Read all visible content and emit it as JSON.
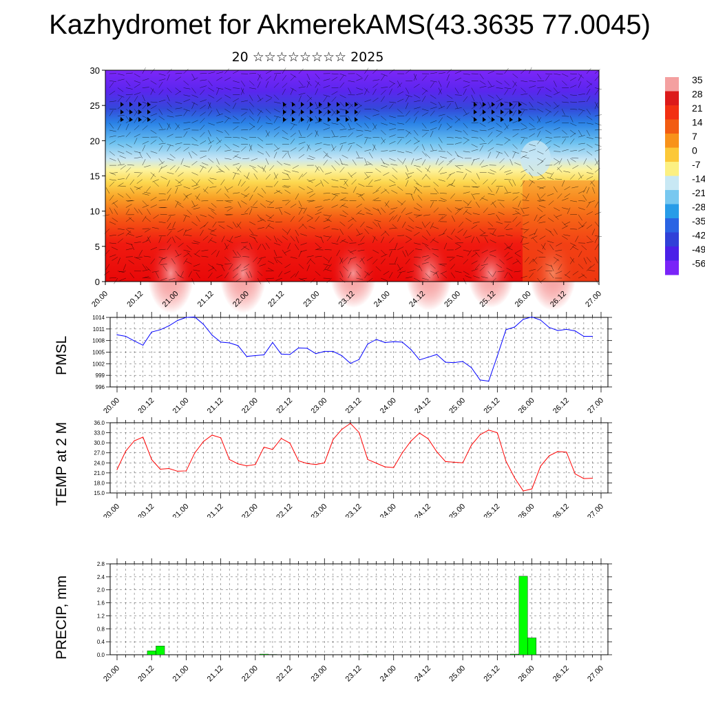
{
  "title": "Kazhydromet for AkmerekAMS(43.3635 77.0045)",
  "subtitle": "20 ☆☆☆☆☆☆☆☆ 2025",
  "time_ticks": [
    "20.00",
    "20.12",
    "21.00",
    "21.12",
    "22.00",
    "22.12",
    "23.00",
    "23.12",
    "24.00",
    "24.12",
    "25.00",
    "25.12",
    "26.00",
    "26.12",
    "27.00"
  ],
  "colors": {
    "pmsl_line": "#0000ff",
    "temp_line": "#ff0000",
    "precip_bar": "#00ff00",
    "precip_bar_edge": "#000000",
    "grid": "#000000"
  },
  "colorbar": {
    "labels": [
      "35",
      "28",
      "21",
      "14",
      "7",
      "0",
      "-7",
      "-14",
      "-21",
      "-28",
      "-35",
      "-42",
      "-49",
      "-56"
    ],
    "colors": [
      "#f4a0a0",
      "#dc1a1a",
      "#f23012",
      "#f25c12",
      "#f8921a",
      "#fcc838",
      "#fcf082",
      "#c8e8f4",
      "#78c8f0",
      "#289ce8",
      "#2a64e4",
      "#3040d8",
      "#4a20e8",
      "#7a24f8"
    ]
  },
  "chart_data": [
    {
      "type": "heatmap",
      "title": "",
      "variable": "air temperature with wind barbs (height–time cross-section)",
      "ylim": [
        0,
        30
      ],
      "yticks": [
        0,
        5,
        10,
        15,
        20,
        25,
        30
      ],
      "xticks": [
        "20.00",
        "20.12",
        "21.00",
        "21.12",
        "22.00",
        "22.12",
        "23.00",
        "23.12",
        "24.00",
        "24.12",
        "25.00",
        "25.12",
        "26.00",
        "26.12",
        "27.00"
      ],
      "value_range": [
        -56,
        35
      ]
    },
    {
      "type": "line",
      "ylabel": "PMSL",
      "ylim": [
        996,
        1014
      ],
      "yticks": [
        "996",
        "999",
        "1002",
        "1005",
        "1008",
        "1011",
        "1014"
      ],
      "xlim": [
        0,
        56
      ],
      "x": [
        0,
        1,
        2,
        3,
        4,
        5,
        6,
        7,
        8,
        9,
        10,
        11,
        12,
        13,
        14,
        15,
        16,
        17,
        18,
        19,
        20,
        21,
        22,
        23,
        24,
        25,
        26,
        27,
        28,
        29,
        30,
        31,
        32,
        33,
        34,
        35,
        36,
        37,
        38,
        39,
        40,
        41,
        42,
        43,
        44,
        45,
        46,
        47,
        48,
        49,
        50,
        51,
        52,
        53,
        54,
        55
      ],
      "series": [
        {
          "values": [
            1009.5,
            1009.1,
            1007.9,
            1006.8,
            1010.2,
            1010.8,
            1011.8,
            1013.2,
            1014.0,
            1014.1,
            1012.2,
            1009.4,
            1007.6,
            1007.4,
            1006.7,
            1003.9,
            1004.1,
            1004.3,
            1007.5,
            1004.5,
            1004.4,
            1006.1,
            1006.0,
            1004.6,
            1005.2,
            1005.2,
            1004.1,
            1002.1,
            1003.1,
            1007.1,
            1008.3,
            1007.5,
            1007.7,
            1007.6,
            1005.7,
            1003.0,
            1003.7,
            1004.4,
            1002.4,
            1002.3,
            1002.6,
            1001.0,
            997.8,
            997.5,
            1004.0,
            1010.8,
            1011.5,
            1013.5,
            1014.1,
            1013.3,
            1011.4,
            1010.6,
            1010.9,
            1010.5,
            1009.1,
            1009.1
          ]
        }
      ]
    },
    {
      "type": "line",
      "ylabel": "TEMP at 2 M",
      "ylim": [
        15,
        36
      ],
      "yticks": [
        "15.0",
        "18.0",
        "21.0",
        "24.0",
        "27.0",
        "30.0",
        "33.0",
        "36.0"
      ],
      "xlim": [
        0,
        56
      ],
      "x": [
        0,
        1,
        2,
        3,
        4,
        5,
        6,
        7,
        8,
        9,
        10,
        11,
        12,
        13,
        14,
        15,
        16,
        17,
        18,
        19,
        20,
        21,
        22,
        23,
        24,
        25,
        26,
        27,
        28,
        29,
        30,
        31,
        32,
        33,
        34,
        35,
        36,
        37,
        38,
        39,
        40,
        41,
        42,
        43,
        44,
        45,
        46,
        47,
        48,
        49,
        50,
        51,
        52,
        53,
        54,
        55
      ],
      "series": [
        {
          "values": [
            22.0,
            27.5,
            30.6,
            31.7,
            25.0,
            22.1,
            22.3,
            21.5,
            21.6,
            27.0,
            30.4,
            32.3,
            31.5,
            25.0,
            23.7,
            23.1,
            23.5,
            28.7,
            28.0,
            31.3,
            29.9,
            24.6,
            23.8,
            23.5,
            24.0,
            31.0,
            34.0,
            35.8,
            33.1,
            25.0,
            23.9,
            22.8,
            22.6,
            27.0,
            30.5,
            32.9,
            31.2,
            27.3,
            24.4,
            24.2,
            24.0,
            29.3,
            32.4,
            33.8,
            33.0,
            24.5,
            19.5,
            15.6,
            16.2,
            23.0,
            26.1,
            27.4,
            27.2,
            20.7,
            19.3,
            19.4
          ]
        }
      ]
    },
    {
      "type": "bar",
      "ylabel": "PRECIP, mm",
      "ylim": [
        0,
        2.8
      ],
      "yticks": [
        "0.0",
        "0.4",
        "0.8",
        "1.2",
        "1.6",
        "2.0",
        "2.4",
        "2.8"
      ],
      "xlim": [
        0,
        56
      ],
      "x": [
        0,
        1,
        2,
        3,
        4,
        5,
        6,
        7,
        8,
        9,
        10,
        11,
        12,
        13,
        14,
        15,
        16,
        17,
        18,
        19,
        20,
        21,
        22,
        23,
        24,
        25,
        26,
        27,
        28,
        29,
        30,
        31,
        32,
        33,
        34,
        35,
        36,
        37,
        38,
        39,
        40,
        41,
        42,
        43,
        44,
        45,
        46,
        47,
        48,
        49,
        50,
        51,
        52,
        53,
        54,
        55
      ],
      "values": [
        0,
        0,
        0,
        0,
        0.12,
        0.27,
        0,
        0,
        0,
        0,
        0,
        0,
        0,
        0,
        0,
        0,
        0,
        0.02,
        0.01,
        0,
        0,
        0,
        0,
        0,
        0,
        0,
        0,
        0,
        0,
        0.01,
        0,
        0,
        0,
        0,
        0,
        0,
        0,
        0,
        0,
        0,
        0,
        0,
        0,
        0,
        0,
        0,
        0.02,
        2.42,
        0.52,
        0,
        0,
        0,
        0,
        0,
        0,
        0
      ]
    }
  ]
}
